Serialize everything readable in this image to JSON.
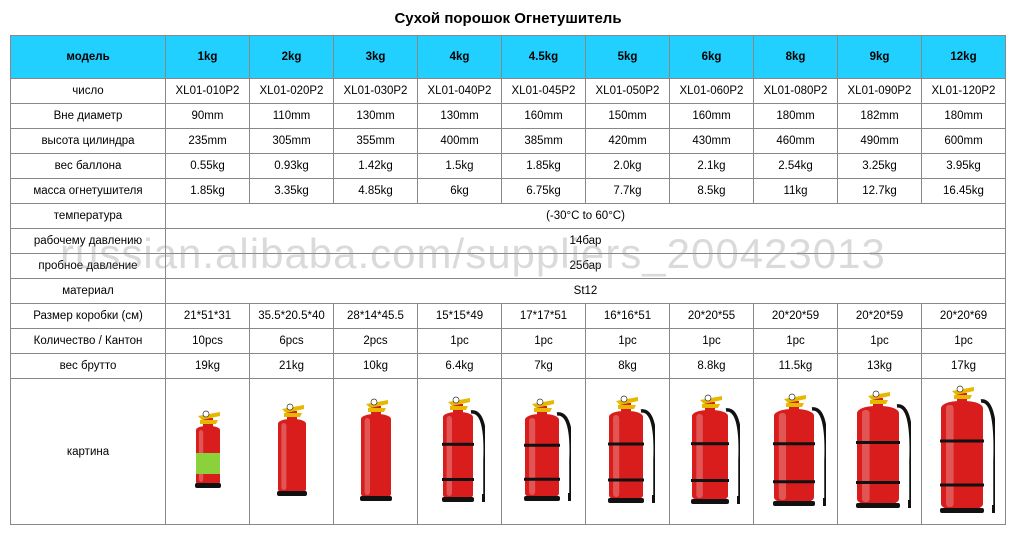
{
  "title": "Сухой порошок Огнетушитель",
  "watermark": "russian.alibaba.com/suppliers_200423013",
  "colors": {
    "header_bg": "#21d0ff",
    "border": "#888888",
    "ext_red": "#d91c1c",
    "ext_green": "#8bd13b",
    "ext_handle": "#e6b800",
    "hose_black": "#111111"
  },
  "table": {
    "header_label": "модель",
    "columns": [
      "1kg",
      "2kg",
      "3kg",
      "4kg",
      "4.5kg",
      "5kg",
      "6kg",
      "8kg",
      "9kg",
      "12kg"
    ],
    "rows": [
      {
        "label": "число",
        "cells": [
          "XL01-010P2",
          "XL01-020P2",
          "XL01-030P2",
          "XL01-040P2",
          "XL01-045P2",
          "XL01-050P2",
          "XL01-060P2",
          "XL01-080P2",
          "XL01-090P2",
          "XL01-120P2"
        ]
      },
      {
        "label": "Вне диаметр",
        "cells": [
          "90mm",
          "110mm",
          "130mm",
          "130mm",
          "160mm",
          "150mm",
          "160mm",
          "180mm",
          "182mm",
          "180mm"
        ]
      },
      {
        "label": "высота цилиндра",
        "cells": [
          "235mm",
          "305mm",
          "355mm",
          "400mm",
          "385mm",
          "420mm",
          "430mm",
          "460mm",
          "490mm",
          "600mm"
        ]
      },
      {
        "label": "вес баллона",
        "cells": [
          "0.55kg",
          "0.93kg",
          "1.42kg",
          "1.5kg",
          "1.85kg",
          "2.0kg",
          "2.1kg",
          "2.54kg",
          "3.25kg",
          "3.95kg"
        ]
      },
      {
        "label": "масса огнетушителя",
        "cells": [
          "1.85kg",
          "3.35kg",
          "4.85kg",
          "6kg",
          "6.75kg",
          "7.7kg",
          "8.5kg",
          "11kg",
          "12.7kg",
          "16.45kg"
        ]
      },
      {
        "label": "температура",
        "span": true,
        "value": "(-30°C to 60°C)"
      },
      {
        "label": "рабочему давлению",
        "span": true,
        "value": "14бар"
      },
      {
        "label": "пробное давление",
        "span": true,
        "value": "25бар"
      },
      {
        "label": "материал",
        "span": true,
        "value": "St12"
      },
      {
        "label": "Размер коробки (см)",
        "cells": [
          "21*51*31",
          "35.5*20.5*40",
          "28*14*45.5",
          "15*15*49",
          "17*17*51",
          "16*16*51",
          "20*20*55",
          "20*20*59",
          "20*20*59",
          "20*20*69"
        ]
      },
      {
        "label": "Количество / Кантон",
        "cells": [
          "10pcs",
          "6pcs",
          "2pcs",
          "1pc",
          "1pc",
          "1pc",
          "1pc",
          "1pc",
          "1pc",
          "1pc"
        ]
      },
      {
        "label": "вес брутто",
        "cells": [
          "19kg",
          "21kg",
          "10kg",
          "6.4kg",
          "7kg",
          "8kg",
          "8.8kg",
          "11.5kg",
          "13kg",
          "17kg"
        ]
      }
    ],
    "picture_label": "картина",
    "extinguishers": [
      {
        "body_h": 60,
        "body_w": 24,
        "green_band": true,
        "hose": false,
        "base": true
      },
      {
        "body_h": 75,
        "body_w": 28,
        "green_band": false,
        "hose": false,
        "base": true
      },
      {
        "body_h": 85,
        "body_w": 30,
        "green_band": false,
        "hose": false,
        "base": true
      },
      {
        "body_h": 88,
        "body_w": 30,
        "green_band": false,
        "hose": true,
        "base": true
      },
      {
        "body_h": 85,
        "body_w": 34,
        "green_band": false,
        "hose": true,
        "base": true
      },
      {
        "body_h": 90,
        "body_w": 34,
        "green_band": false,
        "hose": true,
        "base": true
      },
      {
        "body_h": 92,
        "body_w": 36,
        "green_band": false,
        "hose": true,
        "base": true
      },
      {
        "body_h": 95,
        "body_w": 40,
        "green_band": false,
        "hose": true,
        "base": true
      },
      {
        "body_h": 100,
        "body_w": 42,
        "green_band": false,
        "hose": true,
        "base": true
      },
      {
        "body_h": 110,
        "body_w": 42,
        "green_band": false,
        "hose": true,
        "base": true
      }
    ]
  }
}
